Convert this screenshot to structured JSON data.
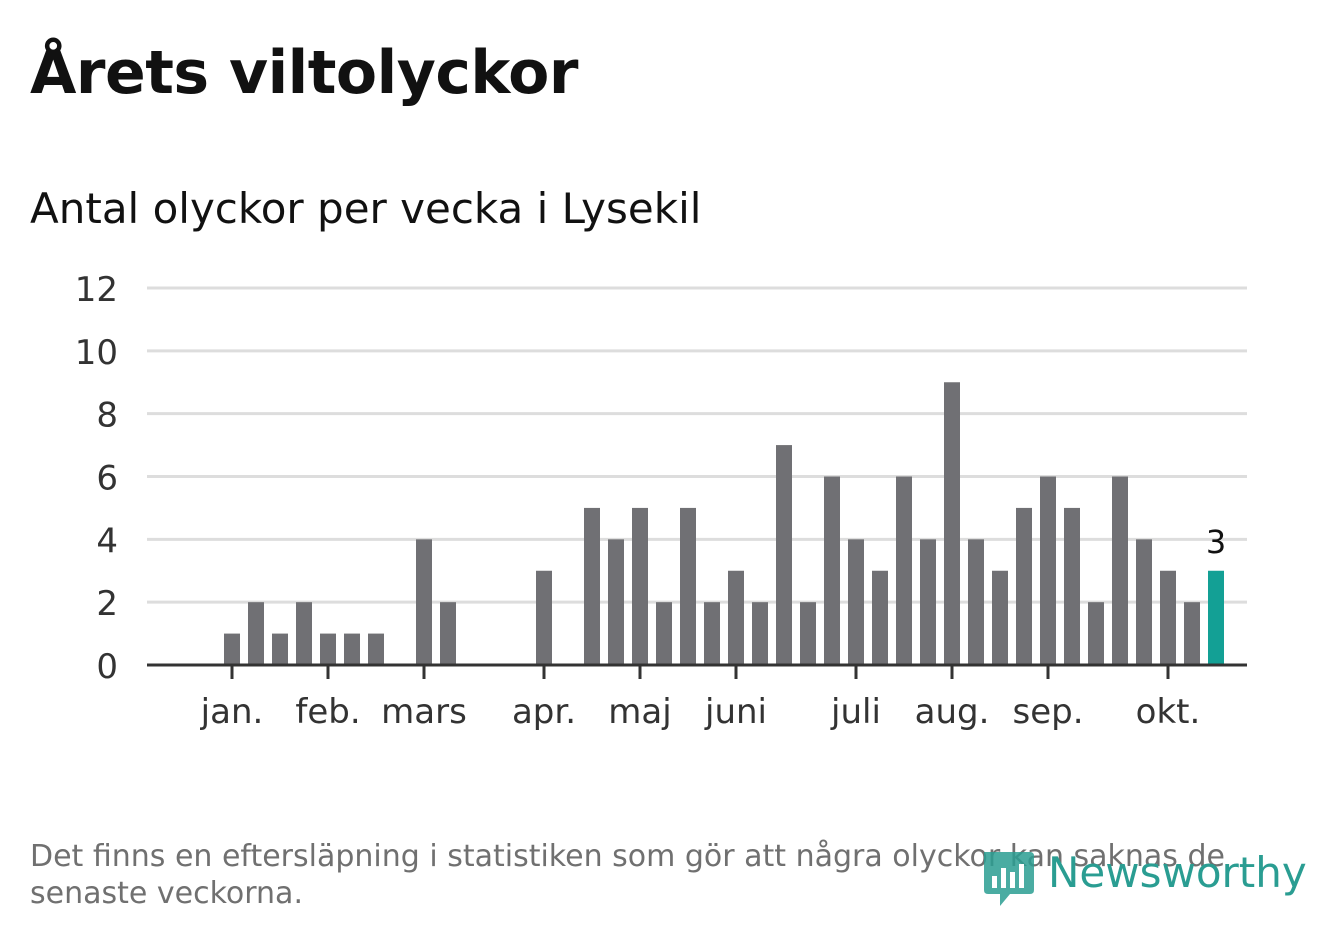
{
  "header": {
    "title": "Årets viltolyckor",
    "subtitle": "Antal olyckor per vecka i Lysekil"
  },
  "footer": {
    "note": "Det finns en eftersläpning i statistiken som gör att några olyckor kan saknas de senaste veckorna."
  },
  "brand": {
    "name": "Newsworthy",
    "icon": "bar-chart-speech-bubble-icon",
    "color": "#2a9d92"
  },
  "colors": {
    "bar": "#707074",
    "highlight": "#13a095",
    "grid": "#dddddd",
    "axis": "#333333"
  },
  "chart_data": {
    "type": "bar",
    "title": "Antal olyckor per vecka i Lysekil",
    "xlabel": "",
    "ylabel": "",
    "ylim": [
      0,
      12
    ],
    "yticks": [
      0,
      2,
      4,
      6,
      8,
      10,
      12
    ],
    "grid": true,
    "weeks": [
      1,
      2,
      3,
      4,
      5,
      6,
      7,
      8,
      9,
      10,
      11,
      12,
      13,
      14,
      15,
      16,
      17,
      18,
      19,
      20,
      21,
      22,
      23,
      24,
      25,
      26,
      27,
      28,
      29,
      30,
      31,
      32,
      33,
      34,
      35,
      36,
      37,
      38,
      39,
      40,
      41,
      42,
      43,
      44
    ],
    "values": [
      0,
      0,
      1,
      2,
      1,
      2,
      1,
      1,
      1,
      0,
      4,
      2,
      0,
      0,
      0,
      3,
      0,
      5,
      4,
      5,
      2,
      5,
      2,
      3,
      2,
      7,
      2,
      6,
      4,
      3,
      6,
      4,
      9,
      4,
      3,
      5,
      6,
      5,
      2,
      6,
      4,
      3,
      2,
      3
    ],
    "month_labels": [
      {
        "label": "jan.",
        "week": 3
      },
      {
        "label": "feb.",
        "week": 7
      },
      {
        "label": "mars",
        "week": 11
      },
      {
        "label": "apr.",
        "week": 16
      },
      {
        "label": "maj",
        "week": 20
      },
      {
        "label": "juni",
        "week": 24
      },
      {
        "label": "juli",
        "week": 29
      },
      {
        "label": "aug.",
        "week": 33
      },
      {
        "label": "sep.",
        "week": 37
      },
      {
        "label": "okt.",
        "week": 42
      }
    ],
    "highlight": {
      "week": 44,
      "value": 3,
      "label": "3"
    }
  }
}
